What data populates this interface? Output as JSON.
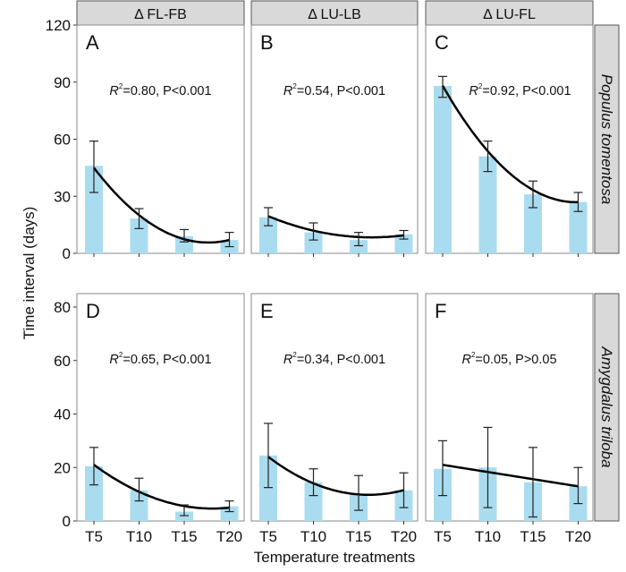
{
  "chart_data": {
    "type": "bar",
    "ylabel": "Time interval (days)",
    "xlabel": "Temperature treatments",
    "categories": [
      "T5",
      "T10",
      "T15",
      "T20"
    ],
    "column_headers": [
      "Δ FL-FB",
      "Δ LU-LB",
      "Δ LU-FL"
    ],
    "row_headers": [
      "Populus tomentosa",
      "Amygdalus triloba"
    ],
    "rows": [
      {
        "ylim": [
          0,
          120
        ],
        "yticks": [
          0,
          30,
          60,
          90,
          120
        ]
      },
      {
        "ylim": [
          0,
          85
        ],
        "yticks": [
          0,
          20,
          40,
          60,
          80
        ]
      }
    ],
    "bar_color": "#aadcef",
    "fit_color": "#000000",
    "grid": false,
    "panels": [
      {
        "label": "A",
        "row": 0,
        "col": 0,
        "r2": "0.80",
        "p": "P<0.001",
        "values": [
          46,
          18.3,
          9,
          7
        ],
        "err_low": [
          32,
          13,
          6,
          3.5
        ],
        "err_high": [
          59,
          23.5,
          12.5,
          11
        ],
        "fit": "quadratic",
        "fit_values": [
          45,
          20,
          7.5,
          7
        ]
      },
      {
        "label": "B",
        "row": 0,
        "col": 1,
        "r2": "0.54",
        "p": "P<0.001",
        "values": [
          19,
          11,
          7,
          10
        ],
        "err_low": [
          14.5,
          7,
          4,
          7.5
        ],
        "err_high": [
          24,
          16,
          11,
          12
        ],
        "fit": "quadratic",
        "fit_values": [
          19.5,
          12,
          8.5,
          9.5
        ]
      },
      {
        "label": "C",
        "row": 0,
        "col": 2,
        "r2": "0.92",
        "p": "P<0.001",
        "values": [
          88,
          51,
          31,
          27
        ],
        "err_low": [
          82,
          43,
          24,
          22
        ],
        "err_high": [
          93,
          59,
          38,
          32
        ],
        "fit": "quadratic",
        "fit_values": [
          88,
          54,
          33,
          27
        ]
      },
      {
        "label": "D",
        "row": 1,
        "col": 0,
        "r2": "0.65",
        "p": "P<0.001",
        "values": [
          20.5,
          11.5,
          3.5,
          5.5
        ],
        "err_low": [
          13.5,
          7.5,
          2,
          3.5
        ],
        "err_high": [
          27.5,
          16,
          6,
          7.5
        ],
        "fit": "quadratic",
        "fit_values": [
          21,
          11,
          5.5,
          5
        ]
      },
      {
        "label": "E",
        "row": 1,
        "col": 1,
        "r2": "0.34",
        "p": "P<0.001",
        "values": [
          24.5,
          14.5,
          10,
          11.5
        ],
        "err_low": [
          12.5,
          9.5,
          4,
          5
        ],
        "err_high": [
          36.5,
          19.5,
          17,
          18
        ],
        "fit": "quadratic",
        "fit_values": [
          24,
          14,
          10,
          11.5
        ]
      },
      {
        "label": "F",
        "row": 1,
        "col": 2,
        "r2": "0.05",
        "p": "P>0.05",
        "values": [
          19.5,
          20,
          14.5,
          13
        ],
        "err_low": [
          9.5,
          5,
          1.5,
          6.5
        ],
        "err_high": [
          30,
          35,
          27.5,
          20
        ],
        "fit": "linear",
        "fit_values": [
          21,
          18.3,
          15.6,
          13
        ]
      }
    ]
  }
}
